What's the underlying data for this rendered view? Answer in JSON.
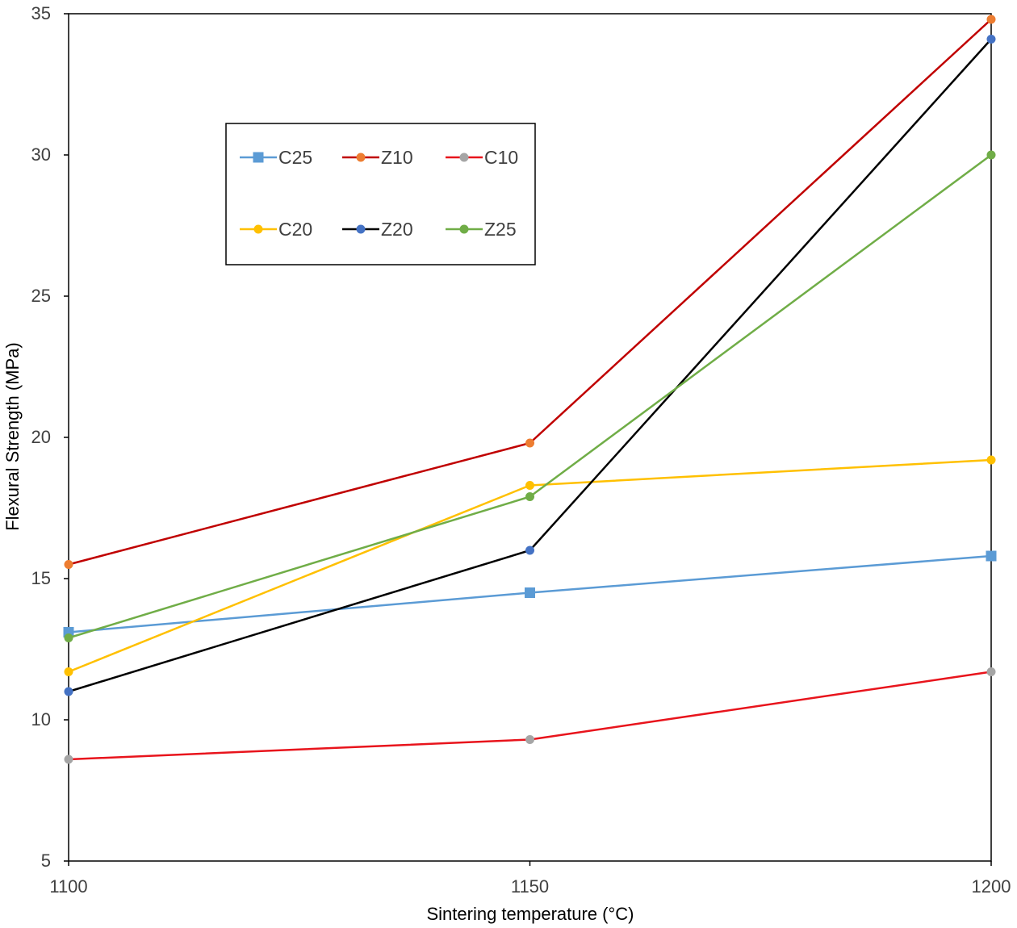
{
  "chart_data": {
    "type": "line",
    "title": "",
    "xlabel": "Sintering temperature (°C)",
    "ylabel": "Flexural Strength (MPa)",
    "x": [
      1100,
      1150,
      1200
    ],
    "xticks": [
      "1100",
      "1150",
      "1200"
    ],
    "xlim": [
      1100,
      1200
    ],
    "ylim": [
      5,
      35
    ],
    "yticks": [
      "5",
      "10",
      "15",
      "20",
      "25",
      "30",
      "35"
    ],
    "grid": false,
    "legend_position": "upper-left inside plot",
    "series": [
      {
        "name": "C25",
        "color": "#5B9BD5",
        "marker": "square",
        "values": [
          13.1,
          14.5,
          15.8
        ]
      },
      {
        "name": "Z10",
        "color": "#C00000",
        "marker": "circle",
        "marker_color": "#ED7D31",
        "values": [
          15.5,
          19.8,
          34.8
        ]
      },
      {
        "name": "C10",
        "color": "#E8141C",
        "marker": "circle",
        "marker_color": "#A5A5A5",
        "values": [
          8.6,
          9.3,
          11.7
        ]
      },
      {
        "name": "C20",
        "color": "#FFC000",
        "marker": "circle",
        "values": [
          11.7,
          18.3,
          19.2
        ]
      },
      {
        "name": "Z20",
        "color": "#000000",
        "marker": "circle",
        "marker_color": "#4472C4",
        "values": [
          11.0,
          16.0,
          34.1
        ]
      },
      {
        "name": "Z25",
        "color": "#70AD47",
        "marker": "circle",
        "values": [
          12.9,
          17.9,
          30.0
        ]
      }
    ]
  }
}
